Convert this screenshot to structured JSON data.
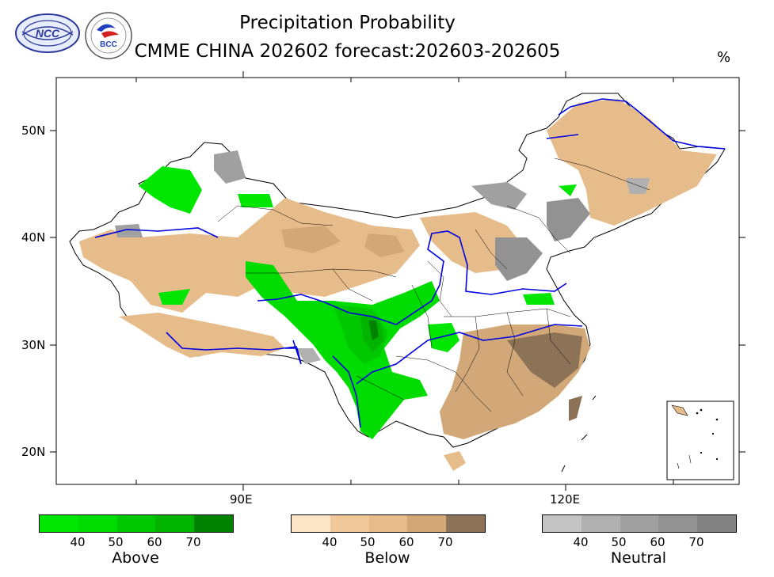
{
  "title": "Precipitation Probability",
  "subtitle": "CMME CHINA 202602 forecast:202603-202605",
  "unit": "%",
  "logos": {
    "left": "NCC",
    "right": "BCC"
  },
  "axes": {
    "y_ticks": [
      "50N",
      "40N",
      "30N",
      "20N"
    ],
    "x_ticks": [
      "90E",
      "120E"
    ]
  },
  "legends": [
    {
      "title": "Above",
      "ticks": [
        "40",
        "50",
        "60",
        "70"
      ],
      "colors": [
        "#00e600",
        "#00dc00",
        "#00c800",
        "#00b400",
        "#008200"
      ]
    },
    {
      "title": "Below",
      "ticks": [
        "40",
        "50",
        "60",
        "70"
      ],
      "colors": [
        "#fde6c8",
        "#f0c89a",
        "#e6bc8a",
        "#d2a878",
        "#8c7358"
      ]
    },
    {
      "title": "Neutral",
      "ticks": [
        "40",
        "50",
        "60",
        "70"
      ],
      "colors": [
        "#c4c4c4",
        "#b0b0b0",
        "#a0a0a0",
        "#929292",
        "#828282"
      ]
    }
  ]
}
